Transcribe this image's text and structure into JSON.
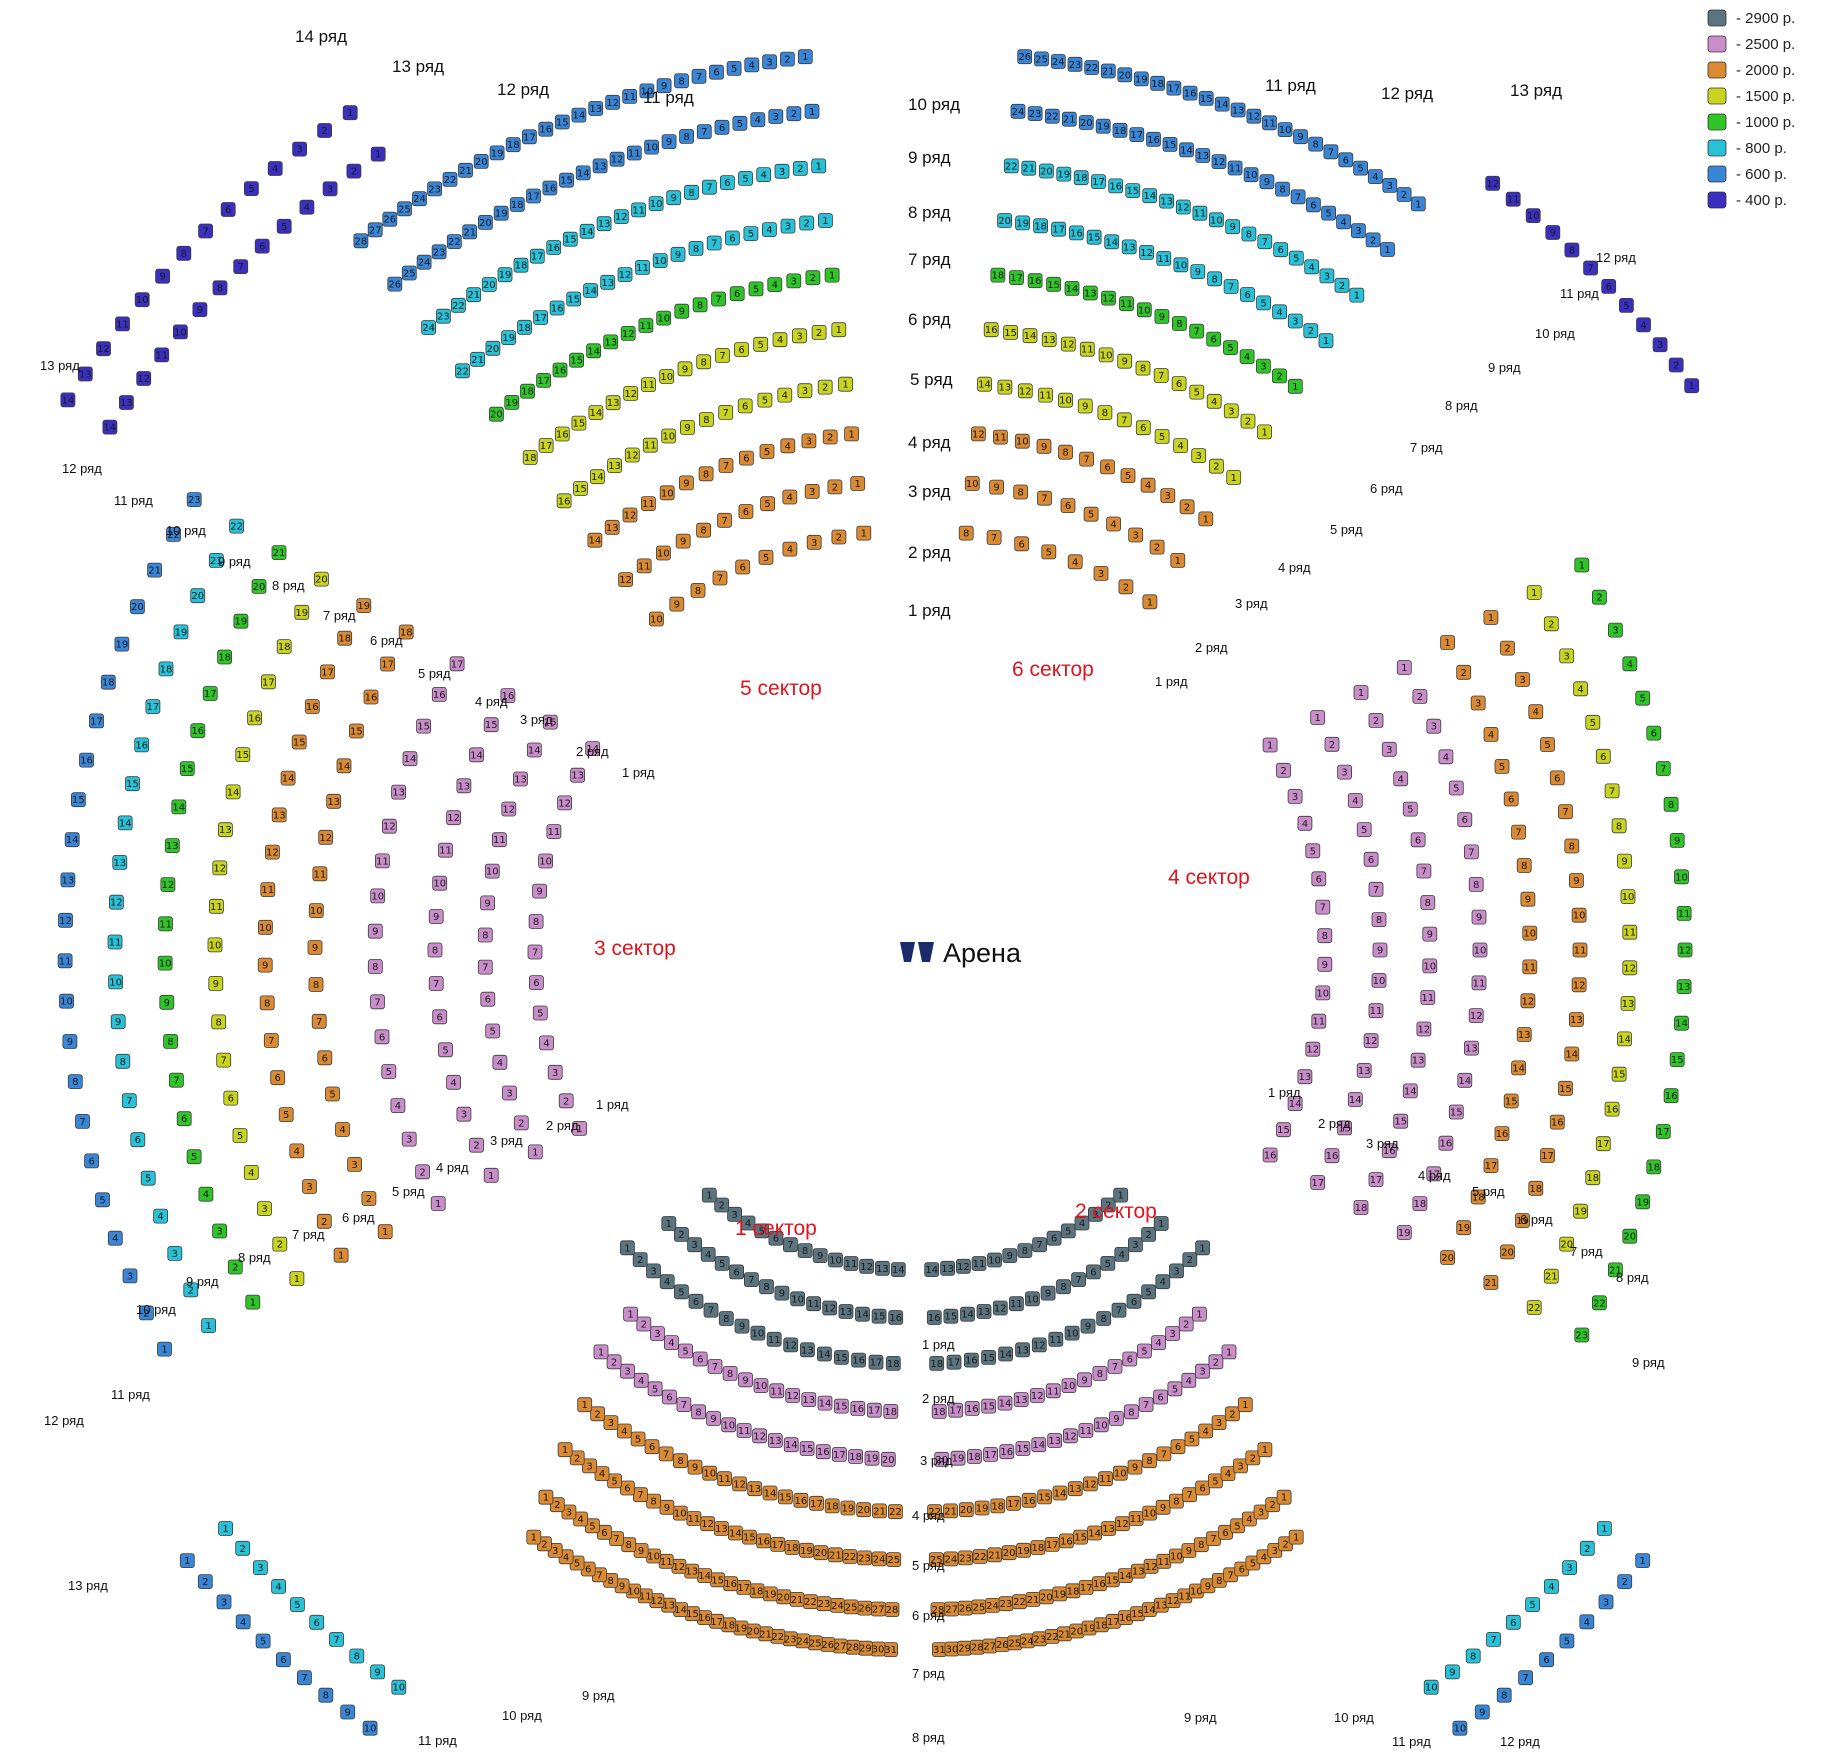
{
  "legend": [
    {
      "label": "- 2900 р.",
      "color": "#5b7480"
    },
    {
      "label": "- 2500 р.",
      "color": "#c98ec9"
    },
    {
      "label": "- 2000 р.",
      "color": "#d98a33"
    },
    {
      "label": "- 1500 р.",
      "color": "#c9d41e"
    },
    {
      "label": "- 1000 р.",
      "color": "#2fc428"
    },
    {
      "label": "- 800 р.",
      "color": "#28c2d8"
    },
    {
      "label": "- 600 р.",
      "color": "#3a86d6"
    },
    {
      "label": "- 400 р.",
      "color": "#3b2fc0"
    }
  ],
  "arena": {
    "label": "Арена"
  },
  "sectors": {
    "s1": "1 сектор",
    "s2": "2 сектор",
    "s3": "3 сектор",
    "s4": "4 сектор",
    "s5": "5 сектор",
    "s6": "6 сектор"
  },
  "top_rows": [
    "10 ряд",
    "9 ряд",
    "8 ряд",
    "7 ряд",
    "6 ряд",
    "5 ряд",
    "4 ряд",
    "3 ряд",
    "2 ряд",
    "1 ряд"
  ],
  "top_extra_rows": {
    "left_14": "14 ряд",
    "left_13": "13 ряд",
    "left_12": "12 ряд",
    "left_11": "11 ряд",
    "right_11": "11 ряд",
    "right_12": "12 ряд",
    "right_13": "13 ряд"
  },
  "bottom_rows": [
    "1 ряд",
    "2 ряд",
    "3 ряд",
    "4 ряд",
    "5 ряд",
    "6 ряд",
    "7 ряд",
    "8 ряд"
  ],
  "small_labels": {
    "nw": [
      "13 ряд",
      "12 ряд",
      "11 ряд",
      "10 ряд",
      "9 ряд",
      "8 ряд",
      "7 ряд",
      "6 ряд",
      "5 ряд",
      "4 ряд",
      "3 ряд",
      "2 ряд",
      "1 ряд"
    ],
    "ne": [
      "12 ряд",
      "11 ряд",
      "10 ряд",
      "9 ряд",
      "8 ряд",
      "7 ряд",
      "6 ряд",
      "5 ряд",
      "4 ряд",
      "3 ряд",
      "2 ряд",
      "1 ряд"
    ],
    "w": [
      "1 ряд",
      "2 ряд",
      "3 ряд",
      "4 ряд",
      "5 ряд",
      "6 ряд",
      "7 ряд",
      "8 ряд",
      "9 ряд",
      "10 ряд"
    ],
    "e": [
      "1 ряд",
      "2 ряд",
      "3 ряд",
      "4 ряд",
      "5 ряд",
      "6 ряд",
      "7 ряд",
      "8 ряд"
    ],
    "sw": [
      "11 ряд",
      "12 ряд",
      "13 ряд",
      "10 ряд",
      "11 ряд",
      "9 ряд"
    ],
    "se": [
      "9 ряд",
      "9 ряд",
      "10 ряд",
      "11 ряд",
      "12 ряд"
    ]
  }
}
